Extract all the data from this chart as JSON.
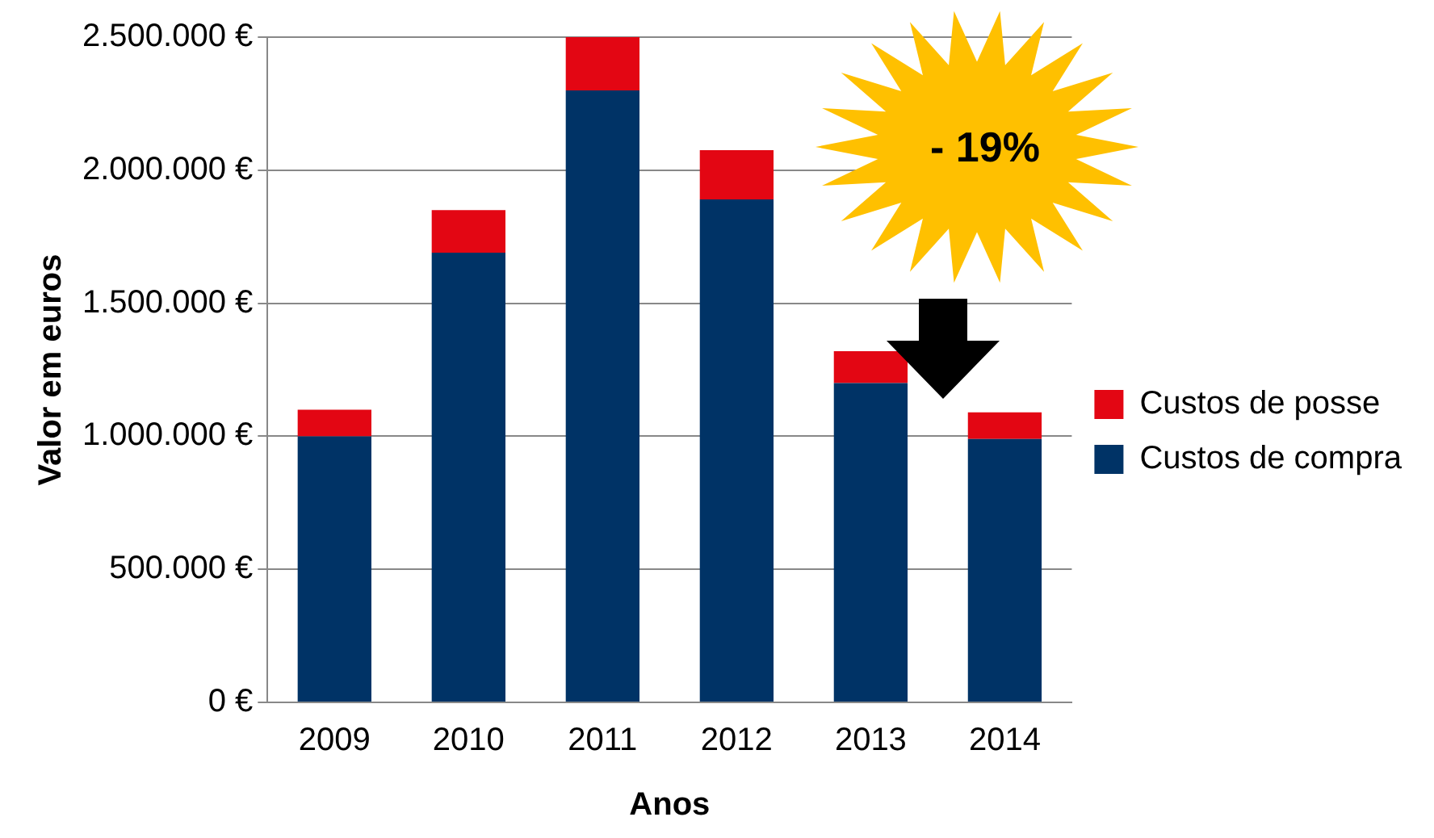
{
  "chart_data": {
    "type": "bar",
    "stacked": true,
    "xlabel": "Anos",
    "ylabel": "Valor em euros",
    "categories": [
      "2009",
      "2010",
      "2011",
      "2012",
      "2013",
      "2014"
    ],
    "series": [
      {
        "name": "Custos de compra",
        "color": "#003366",
        "values": [
          1000000,
          1690000,
          2300000,
          1890000,
          1200000,
          990000
        ]
      },
      {
        "name": "Custos de posse",
        "color": "#e30613",
        "values": [
          100000,
          160000,
          200000,
          185000,
          120000,
          100000
        ]
      }
    ],
    "ylim": [
      0,
      2500000
    ],
    "yticks": [
      {
        "value": 0,
        "label": "0 €"
      },
      {
        "value": 500000,
        "label": "500.000 €"
      },
      {
        "value": 1000000,
        "label": "1.000.000 €"
      },
      {
        "value": 1500000,
        "label": "1.500.000 €"
      },
      {
        "value": 2000000,
        "label": "2.000.000 €"
      },
      {
        "value": 2500000,
        "label": "2.500.000 €"
      }
    ],
    "grid": "y",
    "legend": "right",
    "annotations": [
      "- 19%"
    ]
  }
}
